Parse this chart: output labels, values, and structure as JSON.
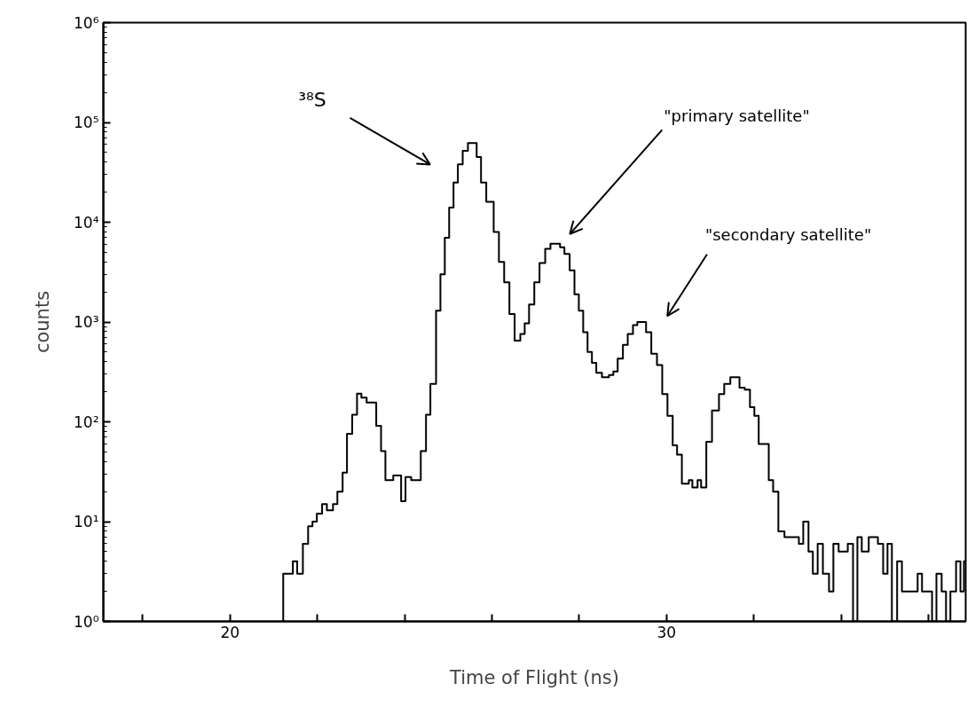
{
  "chart_data": {
    "type": "histogram",
    "xlabel": "Time of Flight (ns)",
    "ylabel": "counts",
    "log": "y",
    "grid": false,
    "line_style": "solid",
    "color": "#000000",
    "xlim": [
      17.1,
      36.85
    ],
    "ylim": [
      1,
      1000000
    ],
    "xticks": [
      {
        "value": 18,
        "label": null
      },
      20,
      {
        "value": 22,
        "label": null
      },
      {
        "value": 24,
        "label": null
      },
      {
        "value": 26,
        "label": null
      },
      {
        "value": 28,
        "label": null
      },
      30,
      {
        "value": 32,
        "label": null
      },
      {
        "value": 34,
        "label": null
      },
      {
        "value": 36,
        "label": null
      }
    ],
    "yticks": [
      {
        "value": 1,
        "label": "10⁰"
      },
      {
        "value": 10,
        "label": "10¹"
      },
      {
        "value": 100,
        "label": "10²"
      },
      {
        "value": 1000,
        "label": "10³"
      },
      {
        "value": 10000,
        "label": "10⁴"
      },
      {
        "value": 100000,
        "label": "10⁵"
      },
      {
        "value": 1000000,
        "label": "10⁶"
      }
    ],
    "bins": [
      21.22,
      21.44,
      21.54,
      21.67,
      21.79,
      21.89,
      21.99,
      22.11,
      22.22,
      22.36,
      22.46,
      22.58,
      22.68,
      22.8,
      22.91,
      23.01,
      23.13,
      23.35,
      23.46,
      23.56,
      23.74,
      23.92,
      24.02,
      24.15,
      24.37,
      24.49,
      24.59,
      24.72,
      24.82,
      24.92,
      25.02,
      25.12,
      25.22,
      25.33,
      25.45,
      25.65,
      25.75,
      25.87,
      26.04,
      26.16,
      26.28,
      26.4,
      26.52,
      26.65,
      26.75,
      26.85,
      26.97,
      27.09,
      27.22,
      27.34,
      27.56,
      27.66,
      27.78,
      27.89,
      27.99,
      28.09,
      28.19,
      28.29,
      28.39,
      28.52,
      28.68,
      28.78,
      28.88,
      29.0,
      29.11,
      29.23,
      29.33,
      29.53,
      29.65,
      29.78,
      29.9,
      30.02,
      30.14,
      30.24,
      30.35,
      30.51,
      30.59,
      30.71,
      30.79,
      30.91,
      31.04,
      31.2,
      31.32,
      31.46,
      31.67,
      31.79,
      31.91,
      32.01,
      32.11,
      32.34,
      32.44,
      32.56,
      32.7,
      33.03,
      33.13,
      33.25,
      33.35,
      33.46,
      33.58,
      33.72,
      33.82,
      33.94,
      34.15,
      34.27,
      34.37,
      34.47,
      34.63,
      34.84,
      34.96,
      35.06,
      35.16,
      35.28,
      35.39,
      35.75,
      35.85,
      36.08,
      36.18,
      36.3,
      36.4,
      36.5,
      36.63,
      36.73,
      36.81,
      36.85
    ],
    "values": [
      3,
      4,
      3,
      6,
      9,
      10,
      12,
      15,
      13,
      15,
      20,
      31,
      76,
      118,
      192,
      175,
      156,
      91,
      51,
      26,
      29,
      16,
      28,
      26,
      51,
      118,
      240,
      1300,
      3000,
      7000,
      14000,
      25000,
      38000,
      52000,
      62000,
      45000,
      25000,
      16000,
      8000,
      4000,
      2500,
      1200,
      650,
      760,
      970,
      1500,
      2500,
      3900,
      5400,
      6100,
      5600,
      4800,
      3300,
      1900,
      1300,
      790,
      500,
      390,
      310,
      280,
      295,
      320,
      430,
      590,
      760,
      930,
      1000,
      790,
      480,
      370,
      190,
      115,
      58,
      47,
      24,
      26,
      22,
      26,
      22,
      63,
      130,
      190,
      240,
      280,
      220,
      210,
      140,
      115,
      60,
      26,
      20,
      8,
      7,
      6,
      10,
      5,
      3,
      6,
      3,
      2,
      6,
      5,
      6,
      1,
      7,
      5,
      7,
      6,
      3,
      6,
      1,
      4,
      2,
      3,
      2,
      1,
      3,
      2,
      1,
      2,
      4,
      2,
      4
    ],
    "annotations": [
      "³⁸S",
      "\"primary satellite\"",
      "\"secondary satellite\""
    ]
  }
}
